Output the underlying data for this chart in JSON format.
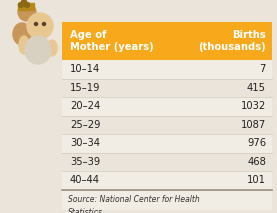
{
  "header_col1": "Age of\nMother (years)",
  "header_col2": "Births\n(thousands)",
  "rows": [
    [
      "10–14",
      "7"
    ],
    [
      "15–19",
      "415"
    ],
    [
      "20–24",
      "1032"
    ],
    [
      "25–29",
      "1087"
    ],
    [
      "30–34",
      "976"
    ],
    [
      "35–39",
      "468"
    ],
    [
      "40–44",
      "101"
    ]
  ],
  "source_text": "Source: National Center for Health\nStatistics",
  "header_bg": "#F7A81B",
  "row_bg_light": "#F2EDE4",
  "row_bg_dark": "#EAE4DA",
  "outer_bg": "#EAE4DA",
  "header_text_color": "#FFFFFF",
  "row_text_color": "#222222",
  "source_text_color": "#333333",
  "figure_bg": "#EAE4DA",
  "divider_color": "#D0C8BC",
  "bottom_border_color": "#9A9080"
}
